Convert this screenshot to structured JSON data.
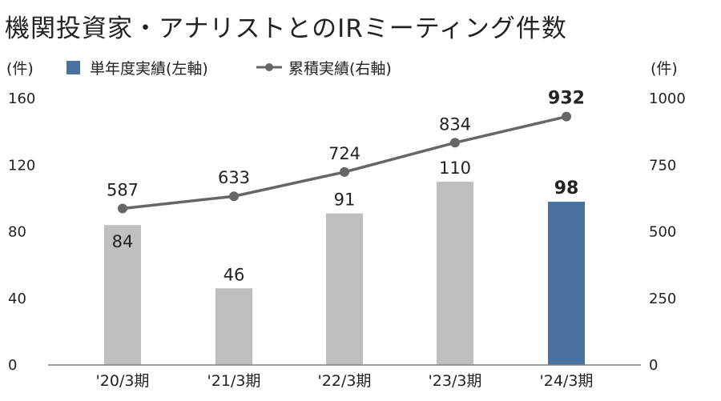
{
  "title": "機関投資家・アナリストとのIRミーティング件数",
  "colors": {
    "bar": "#bfbfbf",
    "bar_highlight": "#4a72a0",
    "line": "#666666",
    "axis": "#808080"
  },
  "chart_data": {
    "type": "bar",
    "categories": [
      "'20/3期",
      "'21/3期",
      "'22/3期",
      "'23/3期",
      "'24/3期"
    ],
    "series": [
      {
        "name": "単年度実績(左軸)",
        "type": "bar",
        "axis": "left",
        "values": [
          84,
          46,
          91,
          110,
          98
        ]
      },
      {
        "name": "累積実績(右軸)",
        "type": "line",
        "axis": "right",
        "values": [
          587,
          633,
          724,
          834,
          932
        ]
      }
    ],
    "y_left": {
      "unit": "(件)",
      "ticks": [
        "0",
        "40",
        "80",
        "120",
        "160"
      ],
      "range": [
        0,
        160
      ]
    },
    "y_right": {
      "unit": "(件)",
      "ticks": [
        "0",
        "250",
        "500",
        "750",
        "1000"
      ],
      "range": [
        0,
        1000
      ]
    },
    "highlight_index": 4,
    "legend": {
      "placement": "top"
    },
    "grid": false
  }
}
